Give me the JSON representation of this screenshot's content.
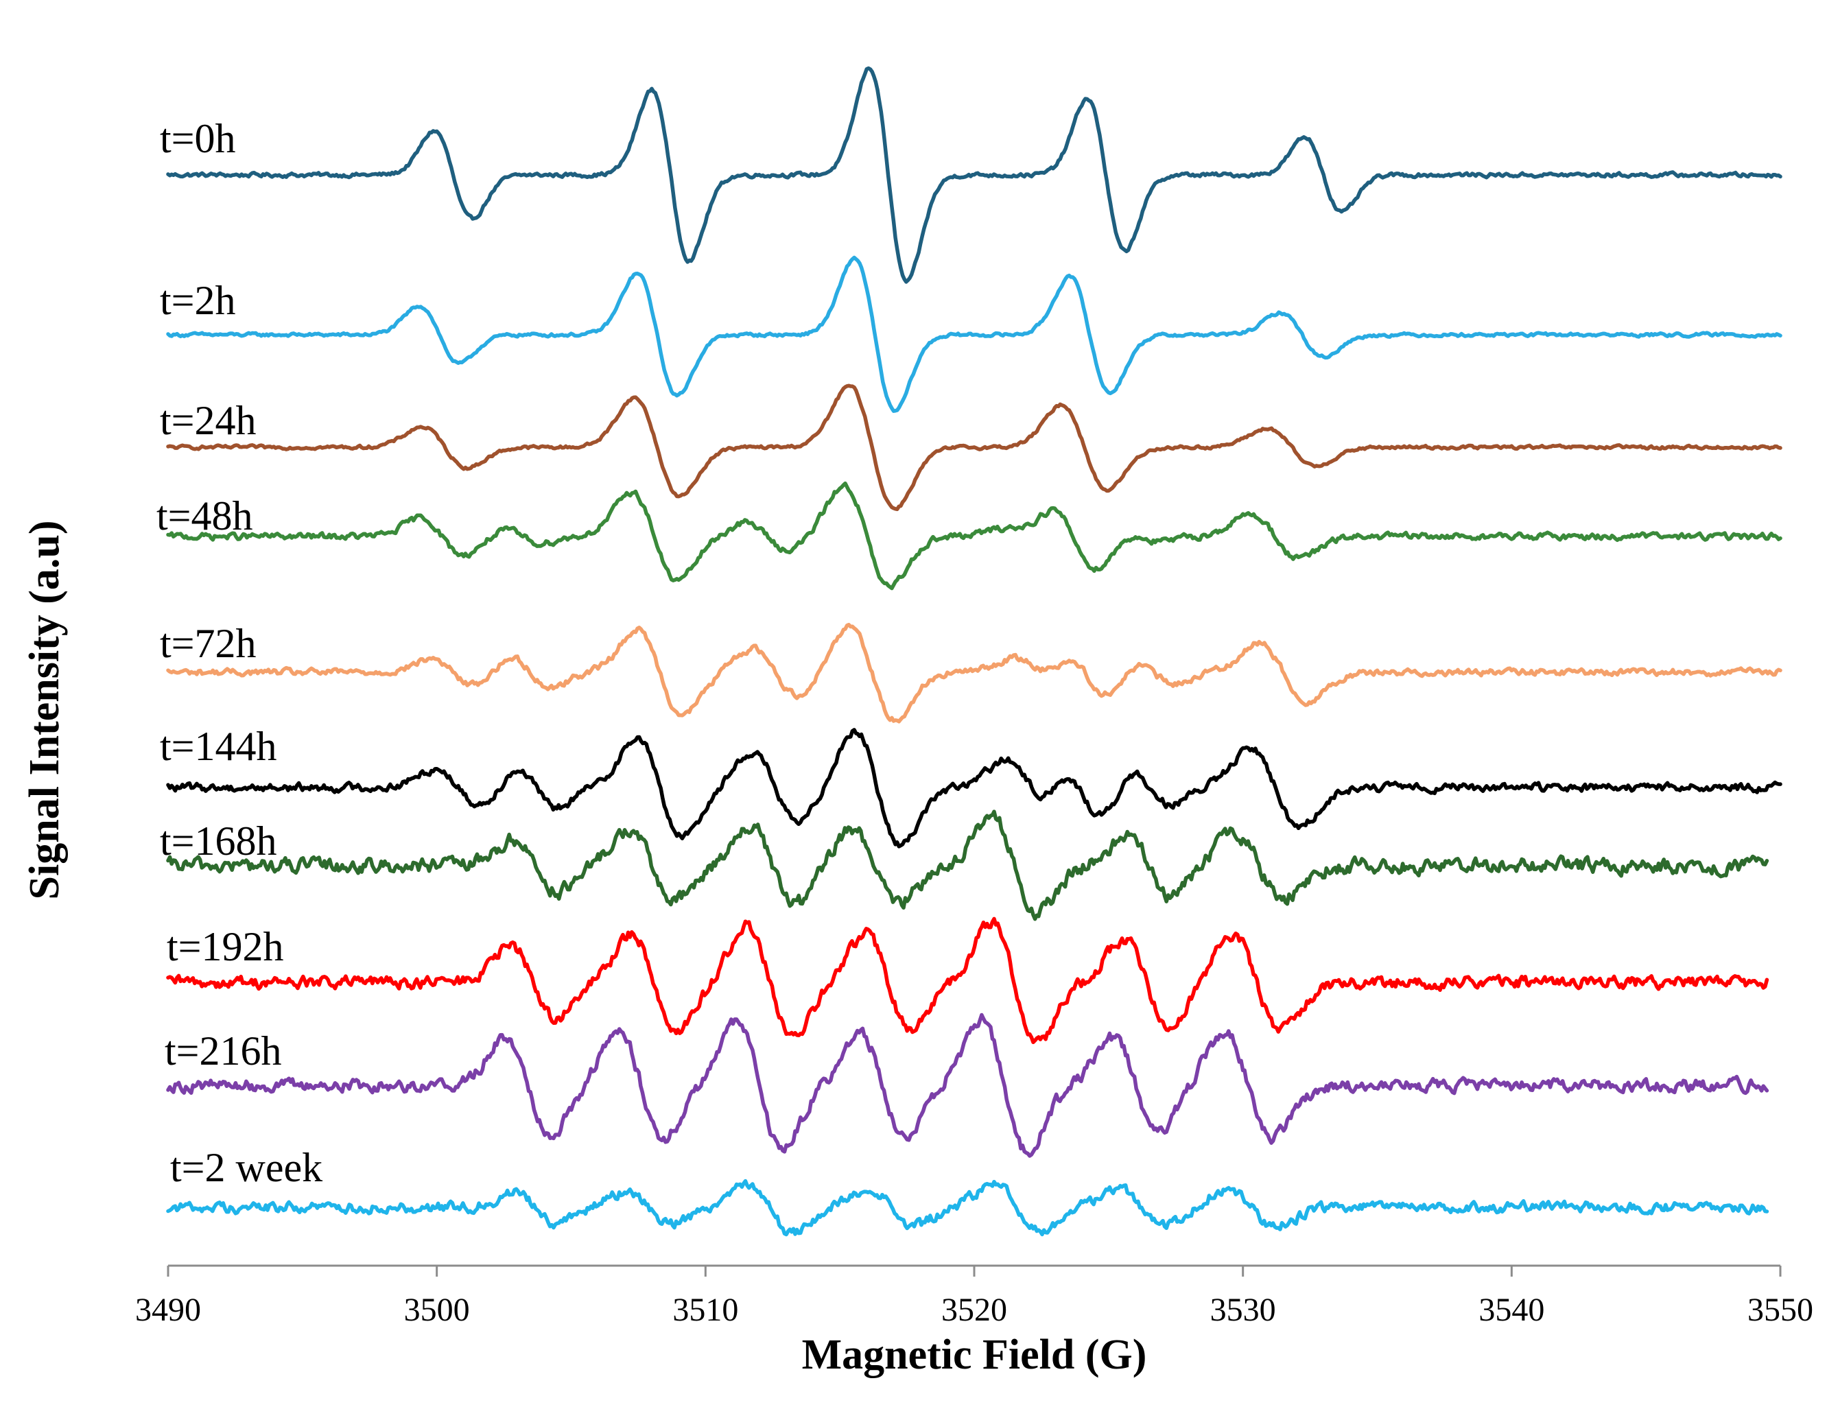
{
  "chart_data": {
    "type": "line",
    "title": "",
    "xlabel": "Magnetic Field (G)",
    "ylabel": "Signal Intensity (a.u)",
    "xlim": [
      3490,
      3550
    ],
    "xticks": [
      3490,
      3500,
      3510,
      3520,
      3530,
      3540,
      3550
    ],
    "grid": false,
    "legend": "inline labels at left of each trace",
    "series": [
      {
        "name": "t=0h",
        "color": "#1f5f7f",
        "x_start": 3490,
        "x_end": 3550,
        "baseline": 0,
        "peaks": [
          {
            "center": 3500.6,
            "amp": 2.6,
            "width": 0.7
          },
          {
            "center": 3508.7,
            "amp": 5.0,
            "width": 0.7
          },
          {
            "center": 3516.8,
            "amp": 6.3,
            "width": 0.7
          },
          {
            "center": 3524.9,
            "amp": 4.5,
            "width": 0.7
          },
          {
            "center": 3533.0,
            "amp": 2.2,
            "width": 0.7
          }
        ],
        "noise": 0.05
      },
      {
        "name": "t=2h",
        "color": "#29abe2",
        "x_start": 3490,
        "x_end": 3550,
        "baseline": 0,
        "peaks": [
          {
            "center": 3500.1,
            "amp": 1.7,
            "width": 0.75
          },
          {
            "center": 3508.2,
            "amp": 3.6,
            "width": 0.75
          },
          {
            "center": 3516.3,
            "amp": 4.5,
            "width": 0.75
          },
          {
            "center": 3524.3,
            "amp": 3.4,
            "width": 0.75
          },
          {
            "center": 3532.2,
            "amp": 1.3,
            "width": 0.8
          }
        ],
        "noise": 0.04
      },
      {
        "name": "t=24h",
        "color": "#a0522d",
        "x_start": 3490,
        "x_end": 3550,
        "baseline": 0,
        "peaks": [
          {
            "center": 3500.3,
            "amp": 1.2,
            "width": 0.85
          },
          {
            "center": 3508.2,
            "amp": 2.9,
            "width": 0.85
          },
          {
            "center": 3516.2,
            "amp": 3.6,
            "width": 0.85
          },
          {
            "center": 3524.1,
            "amp": 2.5,
            "width": 0.85
          },
          {
            "center": 3531.8,
            "amp": 1.1,
            "width": 0.9
          }
        ],
        "noise": 0.04
      },
      {
        "name": "t=48h",
        "color": "#3a8a3a",
        "x_start": 3490,
        "x_end": 3550,
        "baseline": 0,
        "peaks": [
          {
            "center": 3500.2,
            "amp": 1.1,
            "width": 0.8
          },
          {
            "center": 3503.2,
            "amp": 0.4,
            "width": 0.7
          },
          {
            "center": 3508.1,
            "amp": 2.6,
            "width": 0.85
          },
          {
            "center": 3512.3,
            "amp": 0.8,
            "width": 0.8
          },
          {
            "center": 3516.0,
            "amp": 3.0,
            "width": 0.85
          },
          {
            "center": 3521.8,
            "amp": 0.4,
            "width": 0.8
          },
          {
            "center": 3523.7,
            "amp": 1.9,
            "width": 0.85
          },
          {
            "center": 3526.3,
            "amp": 0.3,
            "width": 0.7
          },
          {
            "center": 3531.2,
            "amp": 1.3,
            "width": 0.9
          }
        ],
        "noise": 0.08
      },
      {
        "name": "t=72h",
        "color": "#f4a06a",
        "x_start": 3490,
        "x_end": 3550,
        "baseline": 0,
        "peaks": [
          {
            "center": 3500.6,
            "amp": 0.8,
            "width": 0.8
          },
          {
            "center": 3503.5,
            "amp": 0.9,
            "width": 0.75
          },
          {
            "center": 3508.3,
            "amp": 2.5,
            "width": 0.85
          },
          {
            "center": 3512.6,
            "amp": 1.4,
            "width": 0.85
          },
          {
            "center": 3516.2,
            "amp": 2.8,
            "width": 0.85
          },
          {
            "center": 3522.3,
            "amp": 0.8,
            "width": 0.85
          },
          {
            "center": 3524.2,
            "amp": 1.4,
            "width": 0.8
          },
          {
            "center": 3526.7,
            "amp": 0.7,
            "width": 0.75
          },
          {
            "center": 3531.5,
            "amp": 1.7,
            "width": 0.9
          }
        ],
        "noise": 0.08
      },
      {
        "name": "t=144h",
        "color": "#000000",
        "x_start": 3490,
        "x_end": 3550,
        "baseline": 0,
        "peaks": [
          {
            "center": 3500.8,
            "amp": 1.1,
            "width": 0.85
          },
          {
            "center": 3503.7,
            "amp": 1.2,
            "width": 0.75
          },
          {
            "center": 3508.3,
            "amp": 2.9,
            "width": 0.85
          },
          {
            "center": 3512.6,
            "amp": 2.1,
            "width": 0.85
          },
          {
            "center": 3516.4,
            "amp": 3.4,
            "width": 0.85
          },
          {
            "center": 3522.0,
            "amp": 1.6,
            "width": 0.85
          },
          {
            "center": 3524.0,
            "amp": 1.7,
            "width": 0.8
          },
          {
            "center": 3526.6,
            "amp": 1.0,
            "width": 0.75
          },
          {
            "center": 3531.2,
            "amp": 2.3,
            "width": 0.9
          }
        ],
        "noise": 0.1
      },
      {
        "name": "t=168h",
        "color": "#2d6b2d",
        "x_start": 3490,
        "x_end": 3549.5,
        "baseline": 0,
        "peaks": [
          {
            "center": 3503.7,
            "amp": 1.5,
            "width": 0.85
          },
          {
            "center": 3508.0,
            "amp": 2.1,
            "width": 0.85
          },
          {
            "center": 3512.5,
            "amp": 2.3,
            "width": 0.85
          },
          {
            "center": 3516.3,
            "amp": 2.2,
            "width": 0.85
          },
          {
            "center": 3521.5,
            "amp": 2.8,
            "width": 0.85
          },
          {
            "center": 3526.5,
            "amp": 1.8,
            "width": 0.8
          },
          {
            "center": 3530.6,
            "amp": 1.9,
            "width": 0.9
          }
        ],
        "noise": 0.18
      },
      {
        "name": "t=192h",
        "color": "#ff0000",
        "x_start": 3490,
        "x_end": 3549.5,
        "baseline": 0,
        "peaks": [
          {
            "center": 3503.6,
            "amp": 2.1,
            "width": 0.85
          },
          {
            "center": 3508.1,
            "amp": 2.8,
            "width": 0.85
          },
          {
            "center": 3512.4,
            "amp": 3.3,
            "width": 0.85
          },
          {
            "center": 3516.8,
            "amp": 2.8,
            "width": 0.85
          },
          {
            "center": 3521.5,
            "amp": 3.5,
            "width": 0.85
          },
          {
            "center": 3526.4,
            "amp": 2.5,
            "width": 0.85
          },
          {
            "center": 3530.5,
            "amp": 2.8,
            "width": 0.9
          }
        ],
        "noise": 0.15
      },
      {
        "name": "t=216h",
        "color": "#7b3fa8",
        "x_start": 3490,
        "x_end": 3549.5,
        "baseline": 0,
        "peaks": [
          {
            "center": 3503.4,
            "amp": 2.8,
            "width": 0.85
          },
          {
            "center": 3507.6,
            "amp": 3.1,
            "width": 0.85
          },
          {
            "center": 3512.0,
            "amp": 3.7,
            "width": 0.85
          },
          {
            "center": 3516.6,
            "amp": 3.0,
            "width": 0.85
          },
          {
            "center": 3521.1,
            "amp": 3.9,
            "width": 0.85
          },
          {
            "center": 3526.0,
            "amp": 2.8,
            "width": 0.85
          },
          {
            "center": 3530.2,
            "amp": 3.1,
            "width": 0.9
          }
        ],
        "noise": 0.15
      },
      {
        "name": "t=2 week",
        "color": "#1fb4ea",
        "x_start": 3490,
        "x_end": 3549.5,
        "baseline": 0,
        "peaks": [
          {
            "center": 3503.7,
            "amp": 0.9,
            "width": 0.8
          },
          {
            "center": 3507.9,
            "amp": 0.9,
            "width": 0.85
          },
          {
            "center": 3512.4,
            "amp": 1.5,
            "width": 0.85
          },
          {
            "center": 3516.9,
            "amp": 1.1,
            "width": 0.85
          },
          {
            "center": 3521.6,
            "amp": 1.4,
            "width": 0.85
          },
          {
            "center": 3526.2,
            "amp": 1.1,
            "width": 0.85
          },
          {
            "center": 3530.3,
            "amp": 1.1,
            "width": 0.9
          }
        ],
        "noise": 0.13
      }
    ]
  }
}
